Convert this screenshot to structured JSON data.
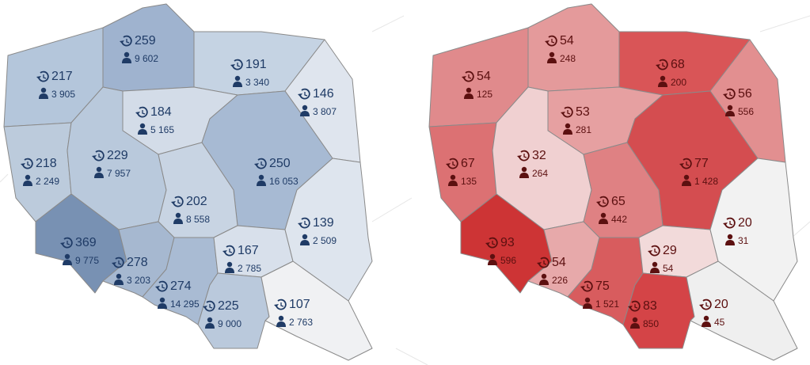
{
  "maps": [
    {
      "text_color": "#1f3b66",
      "regions": [
        {
          "count": 217,
          "people": "3 905",
          "color": "#b4c6db"
        },
        {
          "count": 259,
          "people": "9 602",
          "color": "#9fb3cf"
        },
        {
          "count": 191,
          "people": "3 340",
          "color": "#c5d3e3"
        },
        {
          "count": 146,
          "people": "3 807",
          "color": "#dfe5ee"
        },
        {
          "count": 184,
          "people": "5 165",
          "color": "#d3dce8"
        },
        {
          "count": 218,
          "people": "2 249",
          "color": "#bccbdc"
        },
        {
          "count": 229,
          "people": "7 957",
          "color": "#b9c9dc"
        },
        {
          "count": 250,
          "people": "16 053",
          "color": "#a7bad3"
        },
        {
          "count": 202,
          "people": "8 558",
          "color": "#c8d4e3"
        },
        {
          "count": 369,
          "people": "9 775",
          "color": "#7891b3"
        },
        {
          "count": 278,
          "people": "3 203",
          "color": "#a6b8d0"
        },
        {
          "count": 274,
          "people": "14 295",
          "color": "#a9bbd3"
        },
        {
          "count": 167,
          "people": "2 785",
          "color": "#d8e0eb"
        },
        {
          "count": 139,
          "people": "2 509",
          "color": "#dee5ee"
        },
        {
          "count": 225,
          "people": "9 000",
          "color": "#bac9dc"
        },
        {
          "count": 107,
          "people": "2 763",
          "color": "#f0f1f3"
        }
      ]
    },
    {
      "text_color": "#5c1010",
      "regions": [
        {
          "count": 54,
          "people": "125",
          "color": "#e08a8c"
        },
        {
          "count": 54,
          "people": "248",
          "color": "#e49a9b"
        },
        {
          "count": 68,
          "people": "200",
          "color": "#d95557"
        },
        {
          "count": 56,
          "people": "556",
          "color": "#e28f90"
        },
        {
          "count": 53,
          "people": "281",
          "color": "#e6a0a1"
        },
        {
          "count": 67,
          "people": "135",
          "color": "#dc7173"
        },
        {
          "count": 32,
          "people": "264",
          "color": "#f0d0d1"
        },
        {
          "count": 77,
          "people": "1 428",
          "color": "#d44d50"
        },
        {
          "count": 65,
          "people": "442",
          "color": "#df8183"
        },
        {
          "count": 93,
          "people": "596",
          "color": "#cd3435"
        },
        {
          "count": 54,
          "people": "226",
          "color": "#e7a9aa"
        },
        {
          "count": 75,
          "people": "1 521",
          "color": "#d85c5e"
        },
        {
          "count": 29,
          "people": "54",
          "color": "#f2dada"
        },
        {
          "count": 20,
          "people": "31",
          "color": "#f2f2f2"
        },
        {
          "count": 83,
          "people": "850",
          "color": "#d44447"
        },
        {
          "count": 20,
          "people": "45",
          "color": "#efefef"
        }
      ]
    }
  ]
}
